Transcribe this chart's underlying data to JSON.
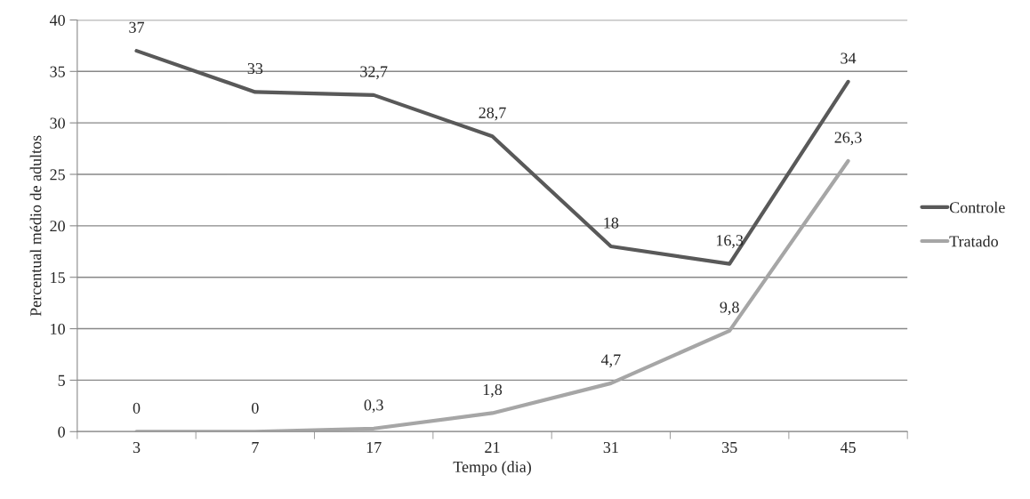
{
  "chart_data": {
    "type": "line",
    "xlabel": "Tempo (dia)",
    "ylabel": "Percentual médio de adultos",
    "categories": [
      "3",
      "7",
      "17",
      "21",
      "31",
      "35",
      "45"
    ],
    "series": [
      {
        "name": "Controle",
        "color": "#595959",
        "values": [
          37,
          33,
          32.7,
          28.7,
          18,
          16.3,
          34
        ],
        "value_labels": [
          "37",
          "33",
          "32,7",
          "28,7",
          "18",
          "16,3",
          "34"
        ]
      },
      {
        "name": "Tratado",
        "color": "#a6a6a6",
        "values": [
          0,
          0,
          0.3,
          1.8,
          4.7,
          9.8,
          26.3
        ],
        "value_labels": [
          "0",
          "0",
          "0,3",
          "1,8",
          "4,7",
          "9,8",
          "26,3"
        ]
      }
    ],
    "ylim": [
      0,
      40
    ],
    "yticks": [
      0,
      5,
      10,
      15,
      20,
      25,
      30,
      35,
      40
    ],
    "grid": "y",
    "legend": "right"
  }
}
